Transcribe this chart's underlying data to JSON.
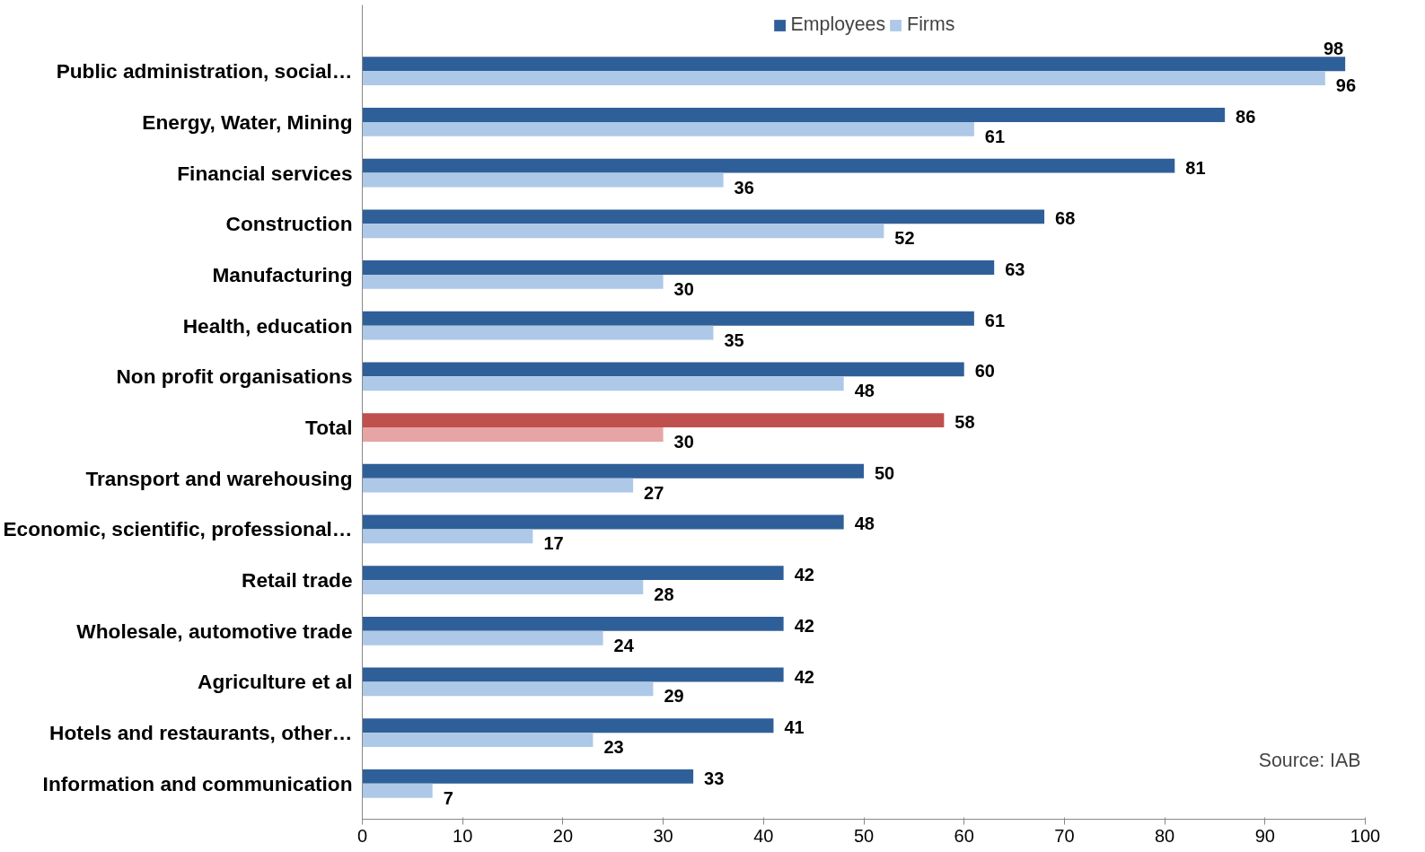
{
  "chart_data": {
    "type": "bar",
    "orientation": "horizontal",
    "categories": [
      "Public administration, social…",
      "Energy, Water, Mining",
      "Financial services",
      "Construction",
      "Manufacturing",
      "Health, education",
      "Non profit organisations",
      "Total",
      "Transport and warehousing",
      "Economic, scientific, professional…",
      "Retail trade",
      "Wholesale, automotive trade",
      "Agriculture et al",
      "Hotels and restaurants, other…",
      "Information and communication"
    ],
    "series": [
      {
        "name": "Employees",
        "color": "#2f5f98",
        "colors": [
          "#2f5f98",
          "#2f5f98",
          "#2f5f98",
          "#2f5f98",
          "#2f5f98",
          "#2f5f98",
          "#2f5f98",
          "#c0504d",
          "#2f5f98",
          "#2f5f98",
          "#2f5f98",
          "#2f5f98",
          "#2f5f98",
          "#2f5f98",
          "#2f5f98"
        ],
        "values": [
          98,
          86,
          81,
          68,
          63,
          61,
          60,
          58,
          50,
          48,
          42,
          42,
          42,
          41,
          33
        ]
      },
      {
        "name": "Firms",
        "color": "#aec8e8",
        "colors": [
          "#aec8e8",
          "#aec8e8",
          "#aec8e8",
          "#aec8e8",
          "#aec8e8",
          "#aec8e8",
          "#aec8e8",
          "#e6a5a4",
          "#aec8e8",
          "#aec8e8",
          "#aec8e8",
          "#aec8e8",
          "#aec8e8",
          "#aec8e8",
          "#aec8e8"
        ],
        "values": [
          96,
          61,
          36,
          52,
          30,
          35,
          48,
          30,
          27,
          17,
          28,
          24,
          29,
          23,
          7
        ]
      }
    ],
    "xlim": [
      0,
      100
    ],
    "xticks": [
      0,
      10,
      20,
      30,
      40,
      50,
      60,
      70,
      80,
      90,
      100
    ],
    "data_labels": true,
    "legend": "top",
    "grid": false,
    "annotations": [
      "Source: IAB"
    ]
  }
}
